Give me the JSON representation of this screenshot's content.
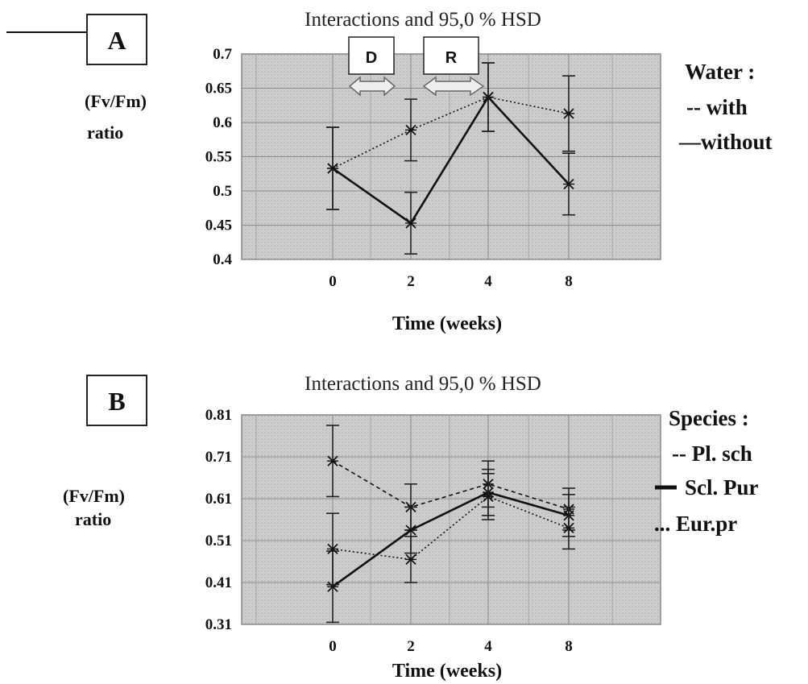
{
  "chart_data": [
    {
      "type": "line",
      "panel_label": "A",
      "title": "Interactions and 95,0 % HSD",
      "xlabel": "Time (weeks)",
      "ylabel_line1": "(Fv/Fm)",
      "ylabel_line2": "ratio",
      "categories": [
        "0",
        "2",
        "4",
        "8"
      ],
      "y_ticks": [
        "0.4",
        "0.45",
        "0.5",
        "0.55",
        "0.6",
        "0.65",
        "0.7"
      ],
      "ylim": [
        0.4,
        0.7
      ],
      "grid": true,
      "legend_title": "Water :",
      "series": [
        {
          "name": "with",
          "legend_label": "-- with",
          "style": "dotted",
          "values": [
            0.533,
            0.589,
            0.637,
            0.613
          ],
          "err": [
            0.06,
            0.045,
            0.05,
            0.055
          ]
        },
        {
          "name": "without",
          "legend_label": "—without",
          "style": "solid",
          "values": [
            0.533,
            0.453,
            0.637,
            0.51
          ],
          "err": [
            0.06,
            0.045,
            0.05,
            0.045
          ]
        }
      ],
      "annotations": [
        {
          "label": "D",
          "from": 0,
          "to": 2
        },
        {
          "label": "R",
          "from": 2,
          "to": 4
        }
      ],
      "legend_position": "right"
    },
    {
      "type": "line",
      "panel_label": "B",
      "title": "Interactions and 95,0 % HSD",
      "xlabel": "Time (weeks)",
      "ylabel_line1": "(Fv/Fm)",
      "ylabel_line2": "ratio",
      "categories": [
        "0",
        "2",
        "4",
        "8"
      ],
      "y_ticks": [
        "0.31",
        "0.41",
        "0.51",
        "0.61",
        "0.71",
        "0.81"
      ],
      "ylim": [
        0.31,
        0.81
      ],
      "grid": true,
      "legend_title": "Species :",
      "series": [
        {
          "name": "Pl. sch",
          "legend_label": "-- Pl. sch",
          "style": "dashed",
          "values": [
            0.7,
            0.59,
            0.645,
            0.585
          ],
          "err": [
            0.085,
            0.055,
            0.055,
            0.05
          ]
        },
        {
          "name": "Scl. Pur",
          "legend_label": "Scl. Pur",
          "style": "solid",
          "values": [
            0.4,
            0.535,
            0.625,
            0.57
          ],
          "err": [
            0.085,
            0.055,
            0.055,
            0.05
          ]
        },
        {
          "name": "Eur.pr",
          "legend_label": "... Eur.pr",
          "style": "dotted",
          "values": [
            0.49,
            0.465,
            0.615,
            0.54
          ],
          "err": [
            0.085,
            0.055,
            0.055,
            0.05
          ]
        }
      ],
      "legend_position": "right"
    }
  ]
}
